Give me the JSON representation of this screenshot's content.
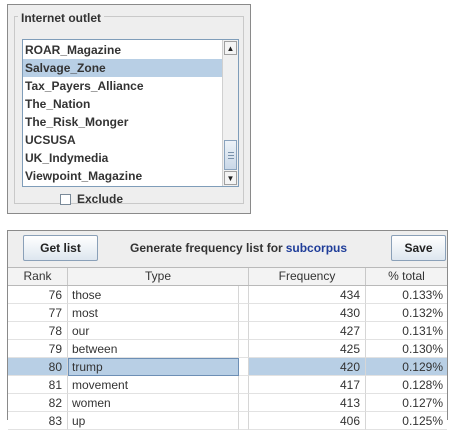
{
  "outlet_panel": {
    "title": "Internet outlet",
    "items": [
      {
        "label": "ROAR_Magazine",
        "selected": false
      },
      {
        "label": "Salvage_Zone",
        "selected": true
      },
      {
        "label": "Tax_Payers_Alliance",
        "selected": false
      },
      {
        "label": "The_Nation",
        "selected": false
      },
      {
        "label": "The_Risk_Monger",
        "selected": false
      },
      {
        "label": "UCSUSA",
        "selected": false
      },
      {
        "label": "UK_Indymedia",
        "selected": false
      },
      {
        "label": "Viewpoint_Magazine",
        "selected": false
      }
    ],
    "exclude_label": "Exclude",
    "exclude_checked": false
  },
  "toolbar": {
    "get_list_label": "Get list",
    "generate_label": "Generate frequency list for",
    "subcorpus_label": "subcorpus",
    "save_label": "Save"
  },
  "table": {
    "headers": {
      "rank": "Rank",
      "type": "Type",
      "frequency": "Frequency",
      "pct": "% total"
    },
    "rows": [
      {
        "rank": "76",
        "type": "those",
        "frequency": "434",
        "pct": "0.133%",
        "selected": false
      },
      {
        "rank": "77",
        "type": "most",
        "frequency": "430",
        "pct": "0.132%",
        "selected": false
      },
      {
        "rank": "78",
        "type": "our",
        "frequency": "427",
        "pct": "0.131%",
        "selected": false
      },
      {
        "rank": "79",
        "type": "between",
        "frequency": "425",
        "pct": "0.130%",
        "selected": false
      },
      {
        "rank": "80",
        "type": "trump",
        "frequency": "420",
        "pct": "0.129%",
        "selected": true
      },
      {
        "rank": "81",
        "type": "movement",
        "frequency": "417",
        "pct": "0.128%",
        "selected": false
      },
      {
        "rank": "82",
        "type": "women",
        "frequency": "413",
        "pct": "0.127%",
        "selected": false
      },
      {
        "rank": "83",
        "type": "up",
        "frequency": "406",
        "pct": "0.125%",
        "selected": false
      }
    ]
  },
  "icons": {
    "scroll_up": "triangle-up-icon",
    "scroll_down": "triangle-down-icon"
  }
}
